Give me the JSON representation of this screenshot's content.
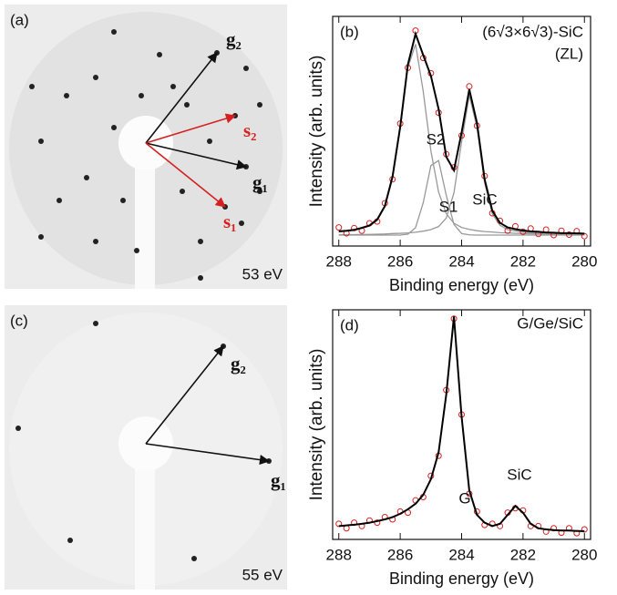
{
  "images": [
    {
      "label": "(a)",
      "energy": "53 eV",
      "vectors": [
        "g₂",
        "s₂",
        "g₁",
        "s₁"
      ]
    },
    {
      "label": "(c)",
      "energy": "55 eV",
      "vectors": [
        "g₂",
        "g₁"
      ]
    }
  ],
  "chart_data": [
    {
      "type": "line",
      "panel_label": "(b)",
      "title": "(6√3×6√3)-SiC",
      "subtitle": "(ZL)",
      "xlabel": "Binding energy (eV)",
      "ylabel": "Intensity (arb. units)",
      "annotations": [
        "S2",
        "S1",
        "SiC"
      ],
      "x": [
        288,
        287.75,
        287.5,
        287.25,
        287,
        286.75,
        286.5,
        286.25,
        286,
        285.75,
        285.5,
        285.25,
        285,
        284.75,
        284.5,
        284.25,
        284,
        283.75,
        283.5,
        283.25,
        283,
        282.75,
        282.5,
        282.25,
        282,
        281.75,
        281.5,
        281.25,
        281,
        280.75,
        280.5,
        280.25,
        280
      ],
      "xlim": [
        288.2,
        279.8
      ],
      "xticks": [
        288,
        286,
        284,
        282,
        280
      ],
      "ylim": [
        0,
        1.05
      ],
      "series": [
        {
          "style": "line",
          "color": "#999999",
          "values": [
            0.065,
            0.068,
            0.072,
            0.08,
            0.091,
            0.117,
            0.178,
            0.31,
            0.537,
            0.816,
            0.923,
            0.707,
            0.435,
            0.247,
            0.148,
            0.104,
            0.085,
            0.076,
            0.07,
            0.066,
            0.064,
            0.061,
            0.06,
            0.058,
            0.057,
            0.056,
            0.056,
            0.055,
            0.055,
            0.054,
            0.054,
            0.054,
            0.053
          ]
        },
        {
          "style": "line",
          "color": "#999999",
          "values": [
            0.05,
            0.05,
            0.05,
            0.05,
            0.05,
            0.05,
            0.05,
            0.05,
            0.05,
            0.054,
            0.084,
            0.198,
            0.368,
            0.391,
            0.232,
            0.099,
            0.057,
            0.051,
            0.05,
            0.05,
            0.05,
            0.05,
            0.05,
            0.05,
            0.05,
            0.05,
            0.05,
            0.05,
            0.05,
            0.05,
            0.05,
            0.05,
            0.05
          ]
        },
        {
          "style": "line",
          "color": "#999999",
          "values": [
            0.052,
            0.052,
            0.052,
            0.053,
            0.053,
            0.054,
            0.055,
            0.057,
            0.058,
            0.06,
            0.063,
            0.068,
            0.075,
            0.089,
            0.128,
            0.243,
            0.477,
            0.689,
            0.543,
            0.289,
            0.147,
            0.095,
            0.075,
            0.069,
            0.064,
            0.061,
            0.059,
            0.057,
            0.056,
            0.055,
            0.055,
            0.054,
            0.054
          ]
        },
        {
          "style": "markers",
          "color": "#d62020",
          "values": [
            0.085,
            0.058,
            0.082,
            0.07,
            0.104,
            0.112,
            0.196,
            0.305,
            0.56,
            0.815,
            0.985,
            0.86,
            0.79,
            0.61,
            0.42,
            0.36,
            0.505,
            0.73,
            0.55,
            0.32,
            0.15,
            0.115,
            0.07,
            0.09,
            0.065,
            0.08,
            0.055,
            0.075,
            0.05,
            0.07,
            0.052,
            0.068,
            0.045
          ]
        },
        {
          "style": "line",
          "color": "#000000",
          "values": [
            0.067,
            0.07,
            0.074,
            0.083,
            0.094,
            0.121,
            0.183,
            0.317,
            0.545,
            0.83,
            0.97,
            0.873,
            0.778,
            0.627,
            0.408,
            0.346,
            0.519,
            0.716,
            0.563,
            0.305,
            0.161,
            0.106,
            0.085,
            0.077,
            0.071,
            0.067,
            0.065,
            0.062,
            0.061,
            0.059,
            0.059,
            0.058,
            0.057
          ]
        }
      ]
    },
    {
      "type": "line",
      "panel_label": "(d)",
      "title": "G/Ge/SiC",
      "xlabel": "Binding energy (eV)",
      "ylabel": "Intensity (arb. units)",
      "annotations": [
        "G",
        "SiC"
      ],
      "x": [
        288,
        287.75,
        287.5,
        287.25,
        287,
        286.75,
        286.5,
        286.25,
        286,
        285.75,
        285.5,
        285.25,
        285,
        284.75,
        284.5,
        284.25,
        284,
        283.75,
        283.5,
        283.25,
        283,
        282.75,
        282.5,
        282.25,
        282,
        281.75,
        281.5,
        281.25,
        281,
        280.75,
        280.5,
        280.25,
        280
      ],
      "xlim": [
        288.2,
        279.8
      ],
      "xticks": [
        288,
        286,
        284,
        282,
        280
      ],
      "ylim": [
        0,
        1.03
      ],
      "series": [
        {
          "style": "markers",
          "color": "#d62020",
          "values": [
            0.07,
            0.05,
            0.075,
            0.06,
            0.085,
            0.075,
            0.1,
            0.09,
            0.125,
            0.12,
            0.175,
            0.19,
            0.285,
            0.375,
            0.67,
            0.99,
            0.56,
            0.205,
            0.125,
            0.065,
            0.07,
            0.06,
            0.12,
            0.14,
            0.13,
            0.06,
            0.06,
            0.035,
            0.05,
            0.03,
            0.05,
            0.028,
            0.045
          ]
        },
        {
          "style": "line",
          "color": "#000000",
          "values": [
            0.06,
            0.063,
            0.066,
            0.07,
            0.075,
            0.082,
            0.09,
            0.1,
            0.115,
            0.135,
            0.16,
            0.2,
            0.27,
            0.39,
            0.65,
            1.0,
            0.55,
            0.22,
            0.11,
            0.075,
            0.06,
            0.07,
            0.11,
            0.15,
            0.12,
            0.07,
            0.05,
            0.045,
            0.042,
            0.04,
            0.04,
            0.038,
            0.037
          ]
        }
      ]
    }
  ]
}
